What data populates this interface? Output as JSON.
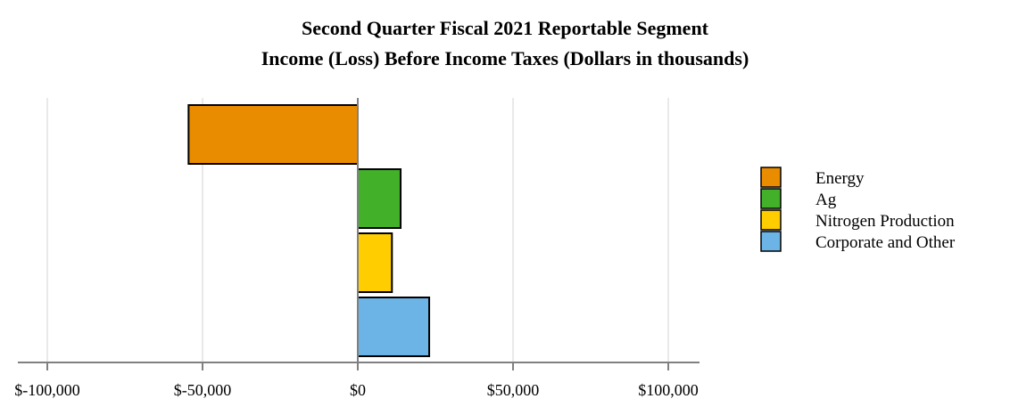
{
  "chart_data": {
    "type": "bar",
    "orientation": "horizontal",
    "title": [
      "Second Quarter Fiscal 2021 Reportable Segment",
      "Income (Loss) Before Income Taxes (Dollars in thousands)"
    ],
    "xlabel": "",
    "ylabel": "",
    "xlim": [
      -110000,
      110000
    ],
    "xticks": [
      -100000,
      -50000,
      0,
      50000,
      100000
    ],
    "xtick_labels": [
      "$-100,000",
      "$-50,000",
      "$0",
      "$50,000",
      "$100,000"
    ],
    "grid": true,
    "legend_position": "right",
    "series": [
      {
        "name": "Energy",
        "value": -54500,
        "color": "#EA8C00"
      },
      {
        "name": "Ag",
        "value": 13800,
        "color": "#43B02A"
      },
      {
        "name": "Nitrogen Production",
        "value": 11000,
        "color": "#FFCD00"
      },
      {
        "name": "Corporate and Other",
        "value": 23000,
        "color": "#6CB4E6"
      }
    ]
  }
}
